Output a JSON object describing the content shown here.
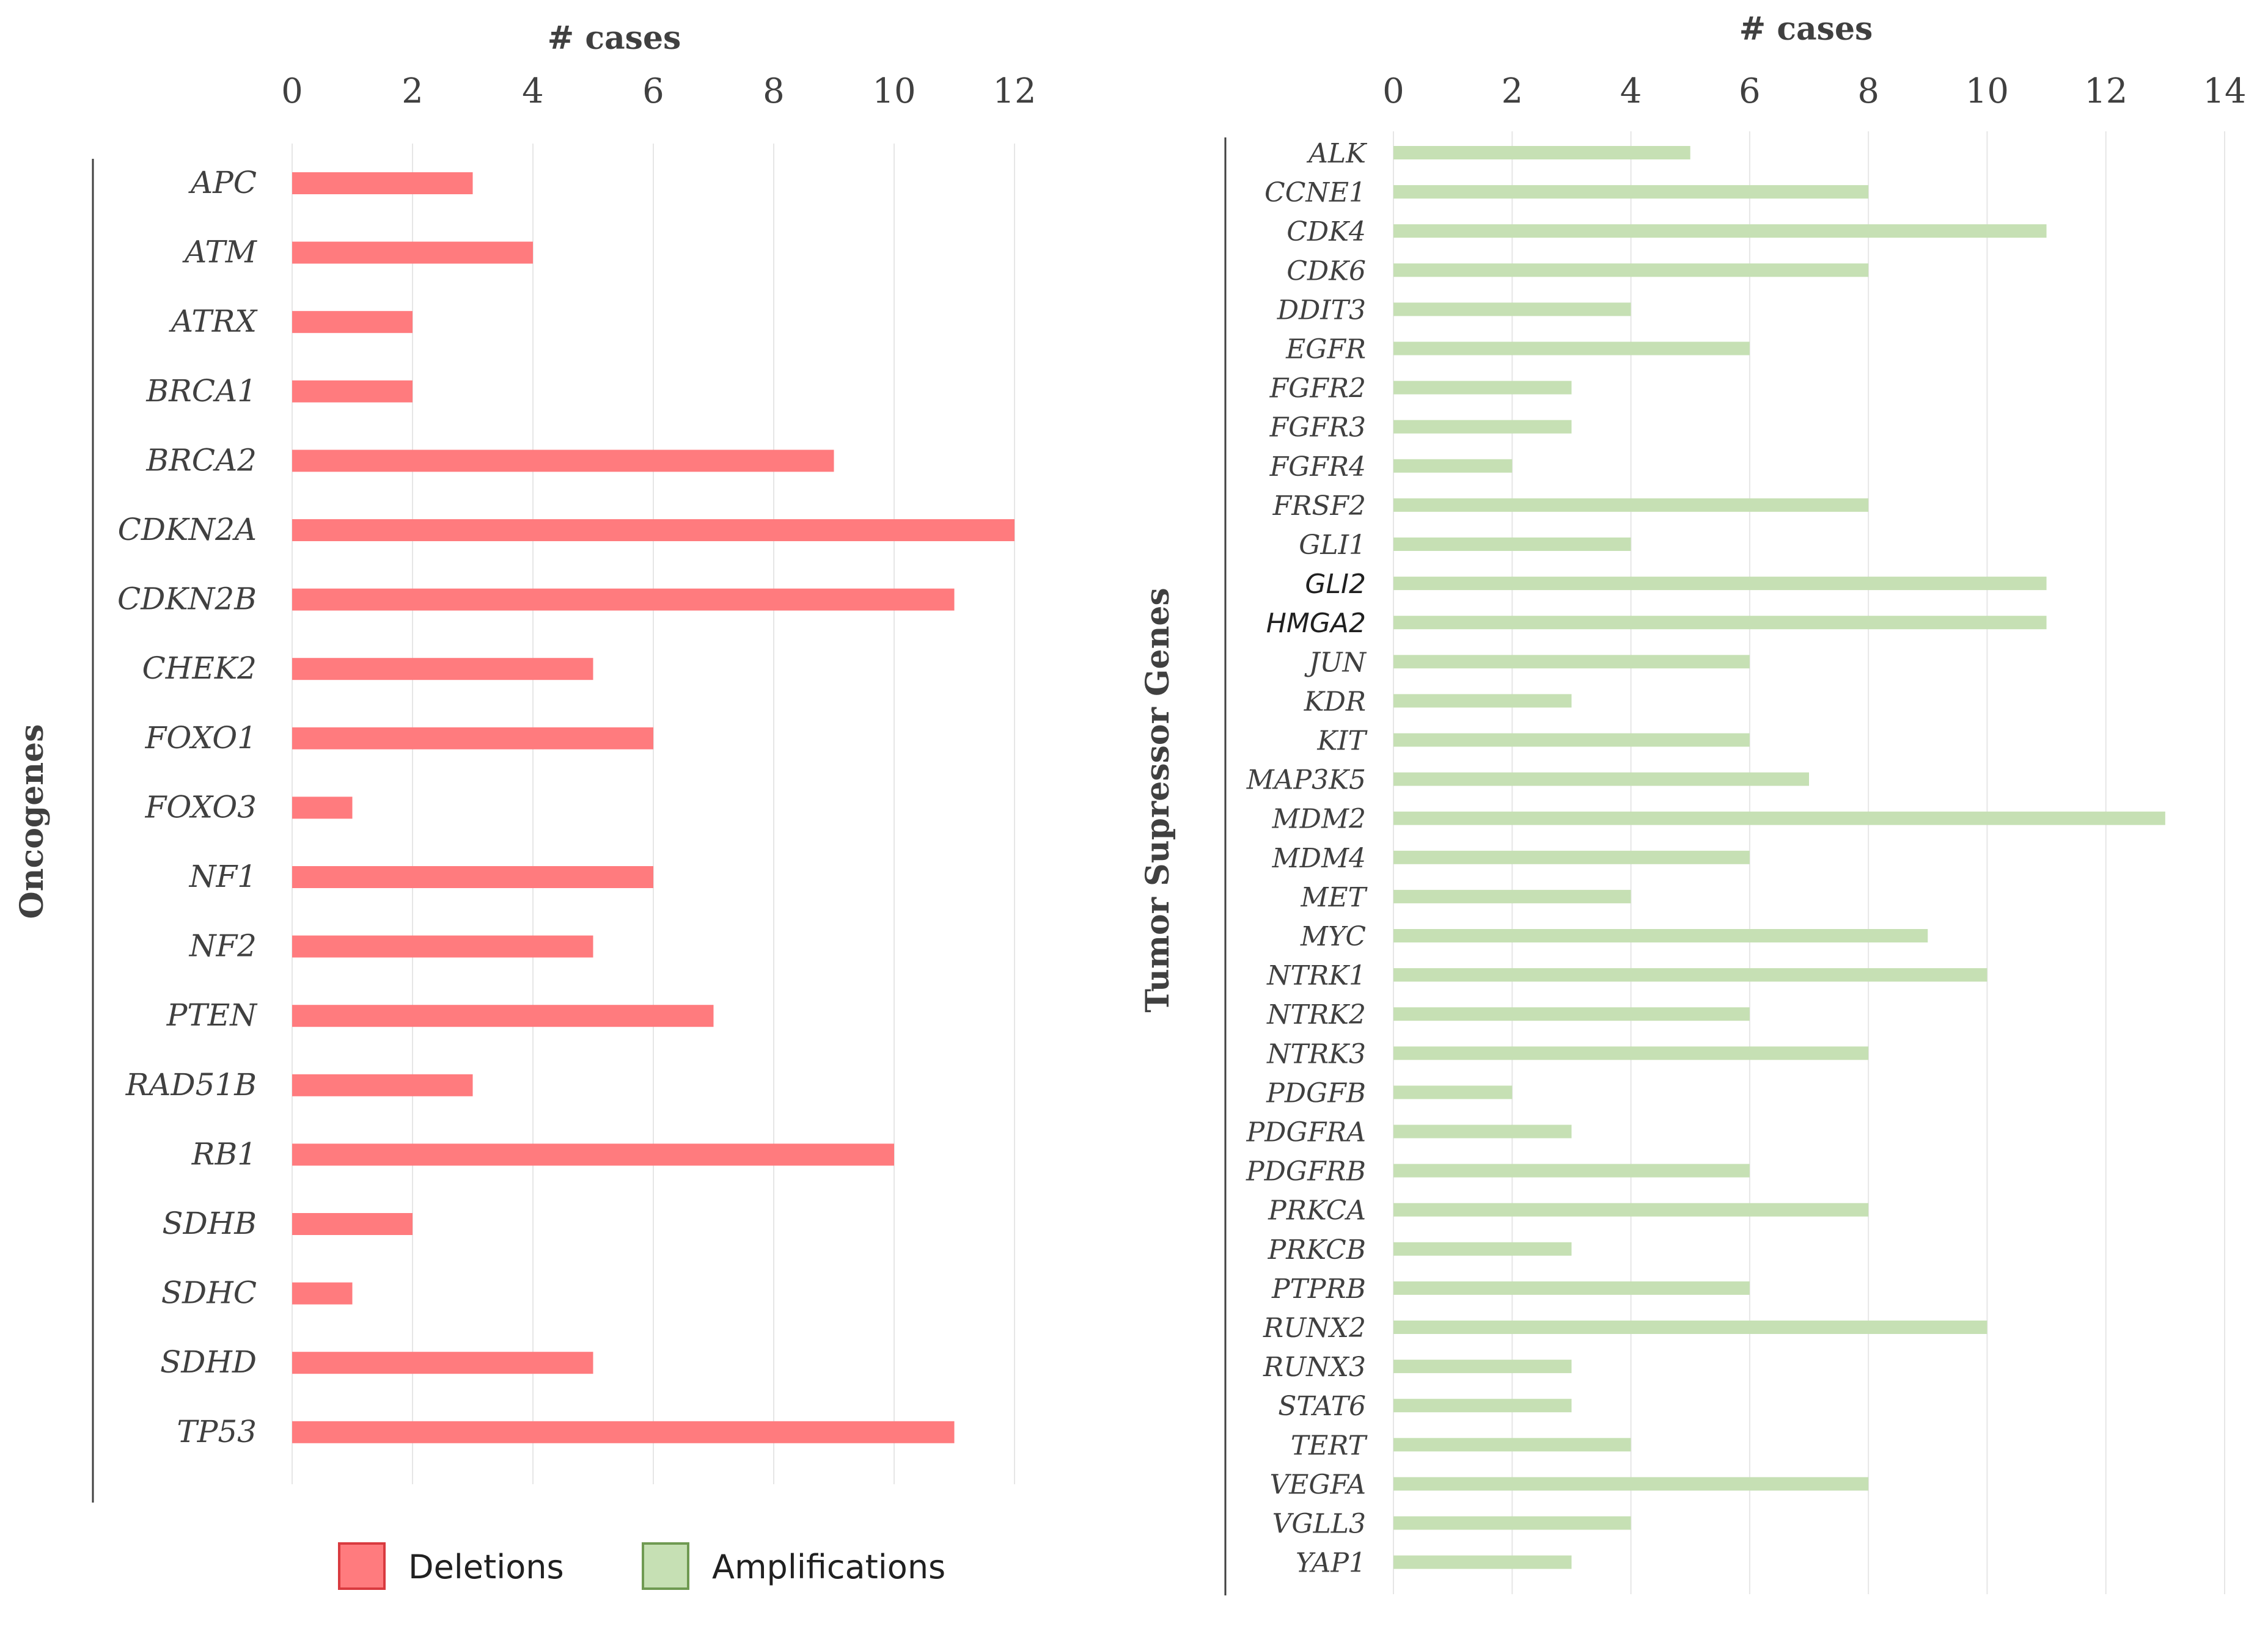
{
  "colors": {
    "deletion": "#ff7b7e",
    "deletion_border": "#d93a3f",
    "amplification": "#c6e0b4",
    "amplification_border": "#6f9a52"
  },
  "legend": [
    {
      "label": "Deletions",
      "color_key": "deletion"
    },
    {
      "label": "Amplifications",
      "color_key": "amplification"
    }
  ],
  "chart_data": [
    {
      "type": "bar",
      "orientation": "horizontal",
      "group_label": "Oncogenes",
      "xlabel": "# cases",
      "xlim": [
        0,
        12
      ],
      "ticks": [
        "0",
        "2",
        "4",
        "6",
        "8",
        "10",
        "12"
      ],
      "series": [
        {
          "name": "Deletions",
          "color": "#ff7b7e"
        }
      ],
      "categories": [
        "APC",
        "ATM",
        "ATRX",
        "BRCA1",
        "BRCA2",
        "CDKN2A",
        "CDKN2B",
        "CHEK2",
        "FOXO1",
        "FOXO3",
        "NF1",
        "NF2",
        "PTEN",
        "RAD51B",
        "RB1",
        "SDHB",
        "SDHC",
        "SDHD",
        "TP53"
      ],
      "values": [
        3,
        4,
        2,
        2,
        9,
        12,
        11,
        5,
        6,
        1,
        6,
        5,
        7,
        3,
        10,
        2,
        1,
        5,
        11
      ]
    },
    {
      "type": "bar",
      "orientation": "horizontal",
      "group_label": "Tumor Supressor Genes",
      "xlabel": "# cases",
      "xlim": [
        0,
        14
      ],
      "ticks": [
        "0",
        "2",
        "4",
        "6",
        "8",
        "10",
        "12",
        "14"
      ],
      "series": [
        {
          "name": "Amplifications",
          "color": "#c6e0b4"
        }
      ],
      "categories": [
        "ALK",
        "CCNE1",
        "CDK4",
        "CDK6",
        "DDIT3",
        "EGFR",
        "FGFR2",
        "FGFR3",
        "FGFR4",
        "FRSF2",
        "GLI1",
        "GLI2",
        "HMGA2",
        "JUN",
        "KDR",
        "KIT",
        "MAP3K5",
        "MDM2",
        "MDM4",
        "MET",
        "MYC",
        "NTRK1",
        "NTRK2",
        "NTRK3",
        "PDGFB",
        "PDGFRA",
        "PDGFRB",
        "PRKCA",
        "PRKCB",
        "PTPRB",
        "RUNX2",
        "RUNX3",
        "STAT6",
        "TERT",
        "VEGFA",
        "VGLL3",
        "YAP1"
      ],
      "values": [
        5,
        8,
        11,
        8,
        4,
        6,
        3,
        3,
        2,
        8,
        4,
        11,
        11,
        6,
        3,
        6,
        7,
        13,
        6,
        4,
        9,
        10,
        6,
        8,
        2,
        3,
        6,
        8,
        3,
        6,
        10,
        3,
        3,
        4,
        8,
        4,
        3
      ],
      "sans_labels": [
        "GLI2",
        "HMGA2"
      ]
    }
  ]
}
